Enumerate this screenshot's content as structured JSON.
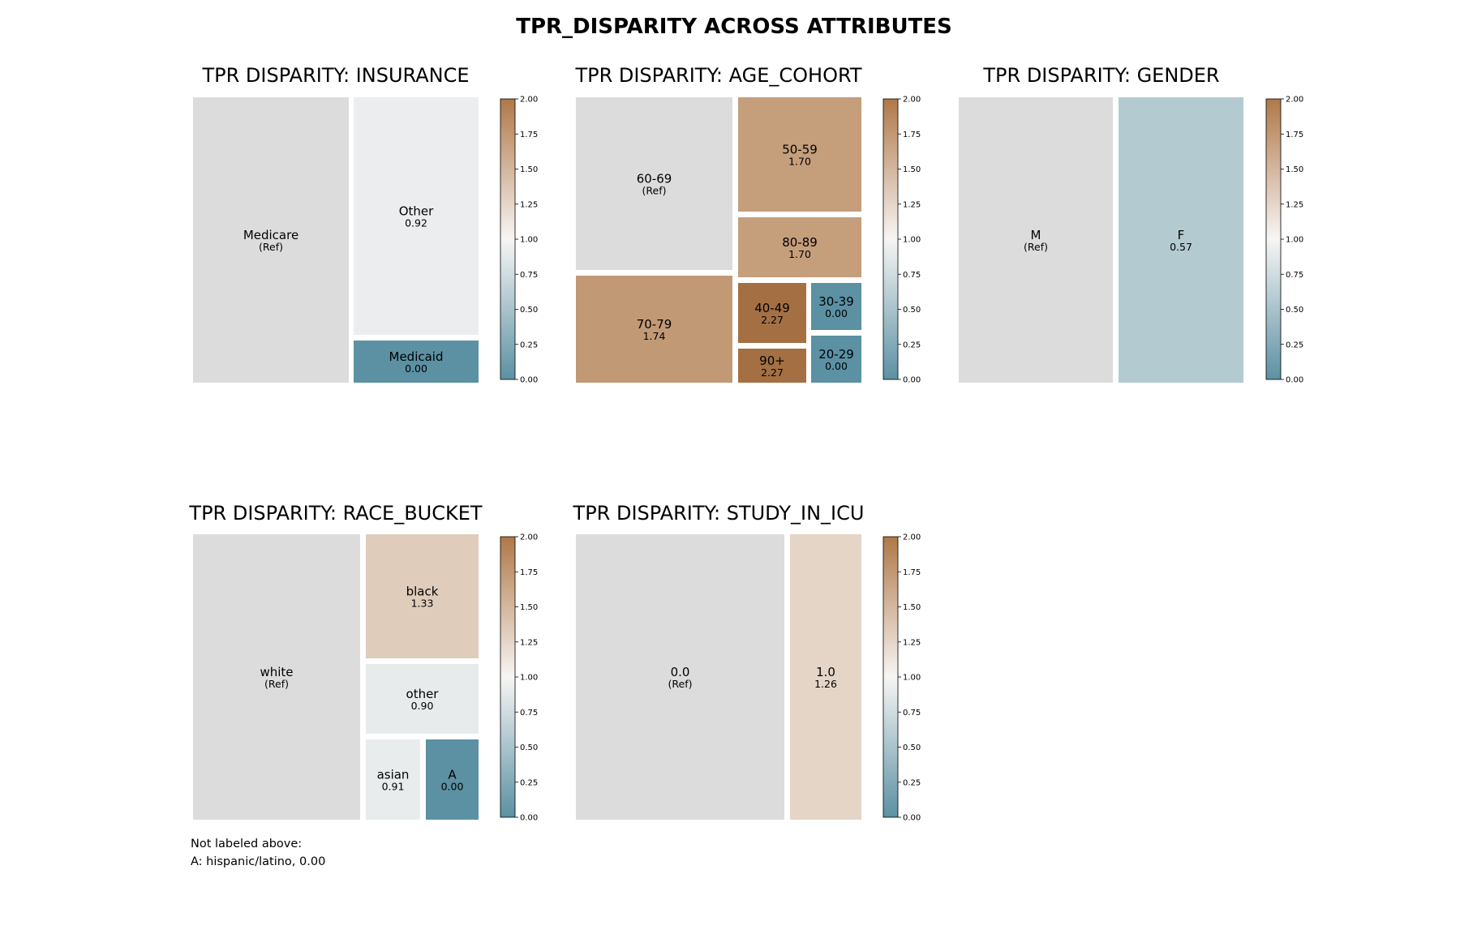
{
  "chart_data": {
    "type": "treemap",
    "title": "TPR_DISPARITY ACROSS ATTRIBUTES",
    "colorbar": {
      "min": 0,
      "max": 2,
      "ticks": [
        "0.00",
        "0.25",
        "0.50",
        "0.75",
        "1.00",
        "1.25",
        "1.50",
        "1.75",
        "2.00"
      ],
      "low_color": "#5b91a3",
      "mid_color": "#f7f5f4",
      "high_color": "#b07848",
      "ref_color": "#dcdcdc"
    },
    "panels": [
      {
        "title": "TPR DISPARITY: INSURANCE",
        "cells": [
          {
            "label": "Medicare",
            "value_text": "(Ref)",
            "value": null,
            "ref": true
          },
          {
            "label": "Other",
            "value_text": "0.92",
            "value": 0.92
          },
          {
            "label": "Medicaid",
            "value_text": "0.00",
            "value": 0.0
          }
        ]
      },
      {
        "title": "TPR DISPARITY: AGE_COHORT",
        "cells": [
          {
            "label": "60-69",
            "value_text": "(Ref)",
            "value": null,
            "ref": true
          },
          {
            "label": "70-79",
            "value_text": "1.74",
            "value": 1.74
          },
          {
            "label": "50-59",
            "value_text": "1.70",
            "value": 1.7
          },
          {
            "label": "80-89",
            "value_text": "1.70",
            "value": 1.7
          },
          {
            "label": "40-49",
            "value_text": "2.27",
            "value": 2.27
          },
          {
            "label": "90+",
            "value_text": "2.27",
            "value": 2.27
          },
          {
            "label": "30-39",
            "value_text": "0.00",
            "value": 0.0
          },
          {
            "label": "20-29",
            "value_text": "0.00",
            "value": 0.0
          }
        ]
      },
      {
        "title": "TPR DISPARITY: GENDER",
        "cells": [
          {
            "label": "M",
            "value_text": "(Ref)",
            "value": null,
            "ref": true
          },
          {
            "label": "F",
            "value_text": "0.57",
            "value": 0.57
          }
        ]
      },
      {
        "title": "TPR DISPARITY: RACE_BUCKET",
        "cells": [
          {
            "label": "white",
            "value_text": "(Ref)",
            "value": null,
            "ref": true
          },
          {
            "label": "black",
            "value_text": "1.33",
            "value": 1.33
          },
          {
            "label": "other",
            "value_text": "0.90",
            "value": 0.9
          },
          {
            "label": "asian",
            "value_text": "0.91",
            "value": 0.91
          },
          {
            "label": "A",
            "value_text": "0.00",
            "value": 0.0
          }
        ],
        "footnote_title": "Not labeled above:",
        "footnote_lines": [
          "A: hispanic/latino, 0.00"
        ]
      },
      {
        "title": "TPR DISPARITY: STUDY_IN_ICU",
        "cells": [
          {
            "label": "0.0",
            "value_text": "(Ref)",
            "value": null,
            "ref": true
          },
          {
            "label": "1.0",
            "value_text": "1.26",
            "value": 1.26
          }
        ]
      }
    ]
  }
}
